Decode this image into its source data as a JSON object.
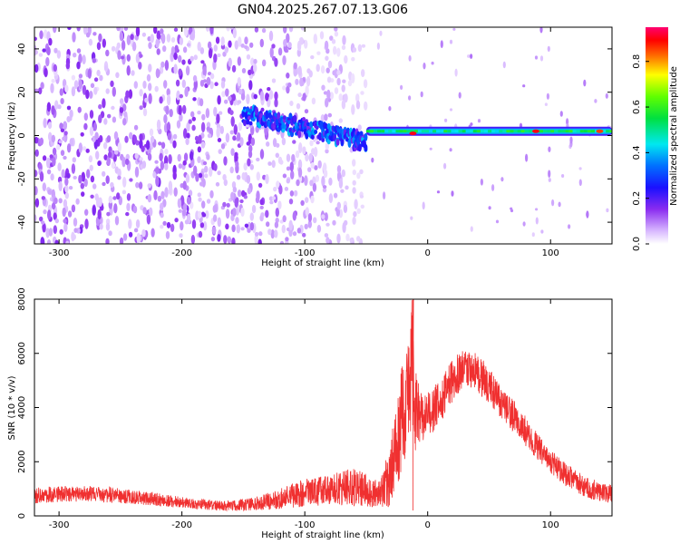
{
  "figure": {
    "title": "GN04.2025.267.07.13.G06"
  },
  "chart_data": [
    {
      "type": "heatmap",
      "title": "GN04.2025.267.07.13.G06",
      "xlabel": "Height of straight line (km)",
      "ylabel": "Frequency (Hz)",
      "xlim": [
        -320,
        150
      ],
      "ylim": [
        -50,
        50
      ],
      "x_ticks": [
        -300,
        -200,
        -100,
        0,
        100
      ],
      "y_ticks": [
        -40,
        -20,
        0,
        20,
        40
      ],
      "grid": false,
      "colorbar": {
        "label": "Normalized spectral amplitude",
        "range": [
          0.0,
          0.95
        ],
        "ticks": [
          0.0,
          0.2,
          0.4,
          0.6,
          0.8
        ],
        "colormap": "rainbow (white-violet-blue-cyan-green-yellow-red-magenta)"
      },
      "regions": [
        {
          "description": "broadband noise",
          "x_range": [
            -320,
            -50
          ],
          "y_range": [
            -50,
            50
          ],
          "amplitude": 0.15
        },
        {
          "description": "signal band",
          "x_range": [
            -150,
            -50
          ],
          "frequency_start": 10,
          "frequency_end": -3,
          "amplitude": 0.3
        },
        {
          "description": "signal band",
          "x_range": [
            -50,
            150
          ],
          "frequency": 2,
          "amplitude": 0.55
        },
        {
          "description": "peak",
          "x": -12,
          "frequency": 1,
          "amplitude": 0.95
        },
        {
          "description": "peak",
          "x": 88,
          "frequency": 2,
          "amplitude": 0.95
        },
        {
          "description": "peak",
          "x": 140,
          "frequency": 2,
          "amplitude": 0.9
        }
      ]
    },
    {
      "type": "line",
      "xlabel": "Height of straight line (km)",
      "ylabel": "SNR (10 * v/v)",
      "xlim": [
        -320,
        150
      ],
      "ylim": [
        0,
        8000
      ],
      "x_ticks": [
        -300,
        -200,
        -100,
        0,
        100
      ],
      "y_ticks": [
        0,
        2000,
        4000,
        6000,
        8000
      ],
      "grid": false,
      "series": [
        {
          "color": "#f03030",
          "x": [
            -320,
            -300,
            -280,
            -260,
            -240,
            -220,
            -200,
            -180,
            -160,
            -140,
            -120,
            -100,
            -80,
            -60,
            -50,
            -40,
            -30,
            -25,
            -20,
            -15,
            -12,
            -10,
            -5,
            0,
            10,
            20,
            30,
            40,
            50,
            60,
            70,
            80,
            90,
            100,
            110,
            120,
            130,
            140,
            150
          ],
          "values": [
            750,
            800,
            820,
            780,
            700,
            600,
            500,
            420,
            380,
            450,
            650,
            850,
            1000,
            1050,
            950,
            800,
            1500,
            2800,
            3800,
            4300,
            6000,
            3600,
            3700,
            3700,
            4200,
            5000,
            5500,
            5300,
            4800,
            4200,
            3700,
            3100,
            2500,
            2000,
            1600,
            1300,
            1050,
            900,
            800
          ],
          "noise_band": [
            300,
            300,
            300,
            300,
            250,
            250,
            200,
            200,
            200,
            250,
            400,
            500,
            600,
            700,
            600,
            500,
            1200,
            1800,
            2000,
            2200,
            3000,
            1800,
            1000,
            900,
            800,
            800,
            700,
            700,
            700,
            600,
            600,
            550,
            500,
            450,
            450,
            400,
            400,
            350,
            350
          ]
        }
      ]
    }
  ]
}
